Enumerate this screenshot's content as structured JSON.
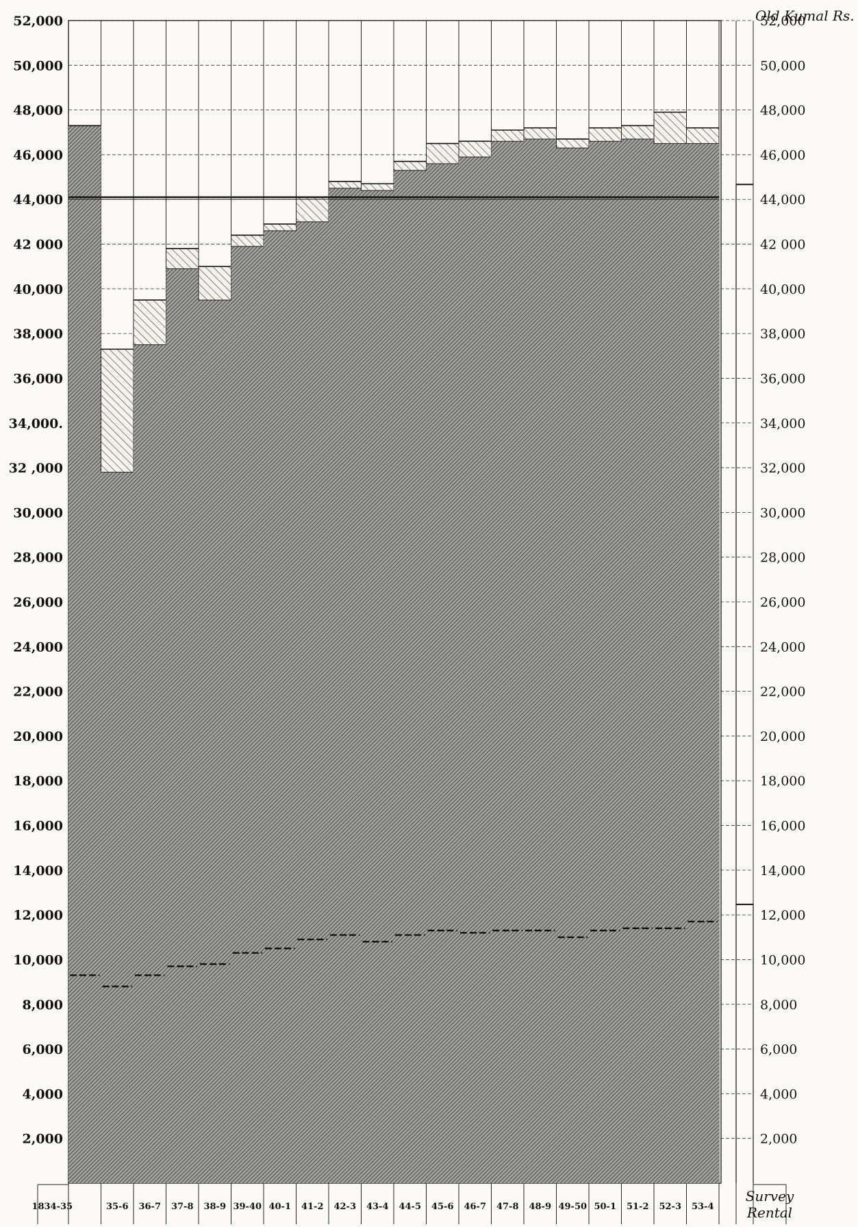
{
  "chart_data": {
    "type": "bar",
    "corner_label": "Old Kumal Rs.",
    "y_unit": "Rs.",
    "ylim": [
      0,
      52000
    ],
    "y_ticks": [
      2000,
      4000,
      6000,
      8000,
      10000,
      12000,
      14000,
      16000,
      18000,
      20000,
      22000,
      24000,
      26000,
      28000,
      30000,
      32000,
      34000,
      36000,
      38000,
      40000,
      42000,
      44000,
      46000,
      48000,
      50000,
      52000
    ],
    "y_tick_labels_left": [
      "2,000",
      "4,000",
      "6,000",
      "8,000",
      "10,000",
      "12,000",
      "14,000",
      "16,000",
      "18,000",
      "20,000",
      "22,000",
      "24,000",
      "26,000",
      "28,000",
      "30,000",
      "32 ,000",
      "34,000.",
      "36,000",
      "38,000",
      "40,000",
      "42 000",
      "44,000",
      "46,000",
      "48,000",
      "50,000",
      "52,000"
    ],
    "y_tick_labels_right": [
      "2,000",
      "4,000",
      "6,000",
      "8,000",
      "10,000",
      "12,000",
      "14,000",
      "16,000",
      "18,000",
      "20,000",
      "22,000",
      "24,000",
      "26,000",
      "28,000",
      "30,000",
      "32,000",
      "34,000",
      "36,000",
      "38,000",
      "40,000",
      "42 000",
      "44,000",
      "46,000",
      "48,000",
      "50,000",
      "52,000"
    ],
    "categories": [
      "1834-35",
      "35-6",
      "36-7",
      "37-8",
      "38-9",
      "39-40",
      "40-1",
      "41-2",
      "42-3",
      "43-4",
      "44-5",
      "45-6",
      "46-7",
      "47-8",
      "48-9",
      "49-50",
      "50-1",
      "51-2",
      "52-3",
      "53-4"
    ],
    "series": [
      {
        "values": [
          47300,
          31800,
          37500,
          40900,
          39500,
          41900,
          42600,
          43000,
          44500,
          44400,
          45300,
          45600,
          45900,
          46600,
          46700,
          46300,
          46600,
          46700,
          46500,
          46500
        ]
      },
      {
        "values": [
          47300,
          37300,
          39500,
          41800,
          41000,
          42400,
          42900,
          44100,
          44800,
          44700,
          45700,
          46500,
          46600,
          47100,
          47200,
          46700,
          47200,
          47300,
          47900,
          47200
        ]
      },
      {
        "values": [
          9300,
          8800,
          9300,
          9700,
          9800,
          10300,
          10500,
          10900,
          11100,
          10800,
          11100,
          11300,
          11200,
          11300,
          11300,
          11000,
          11300,
          11400,
          11400,
          11700
        ]
      }
    ],
    "reference_line": 44100,
    "survey_rental": {
      "label": "Survey Rental",
      "values": [
        44700,
        12500
      ]
    }
  }
}
